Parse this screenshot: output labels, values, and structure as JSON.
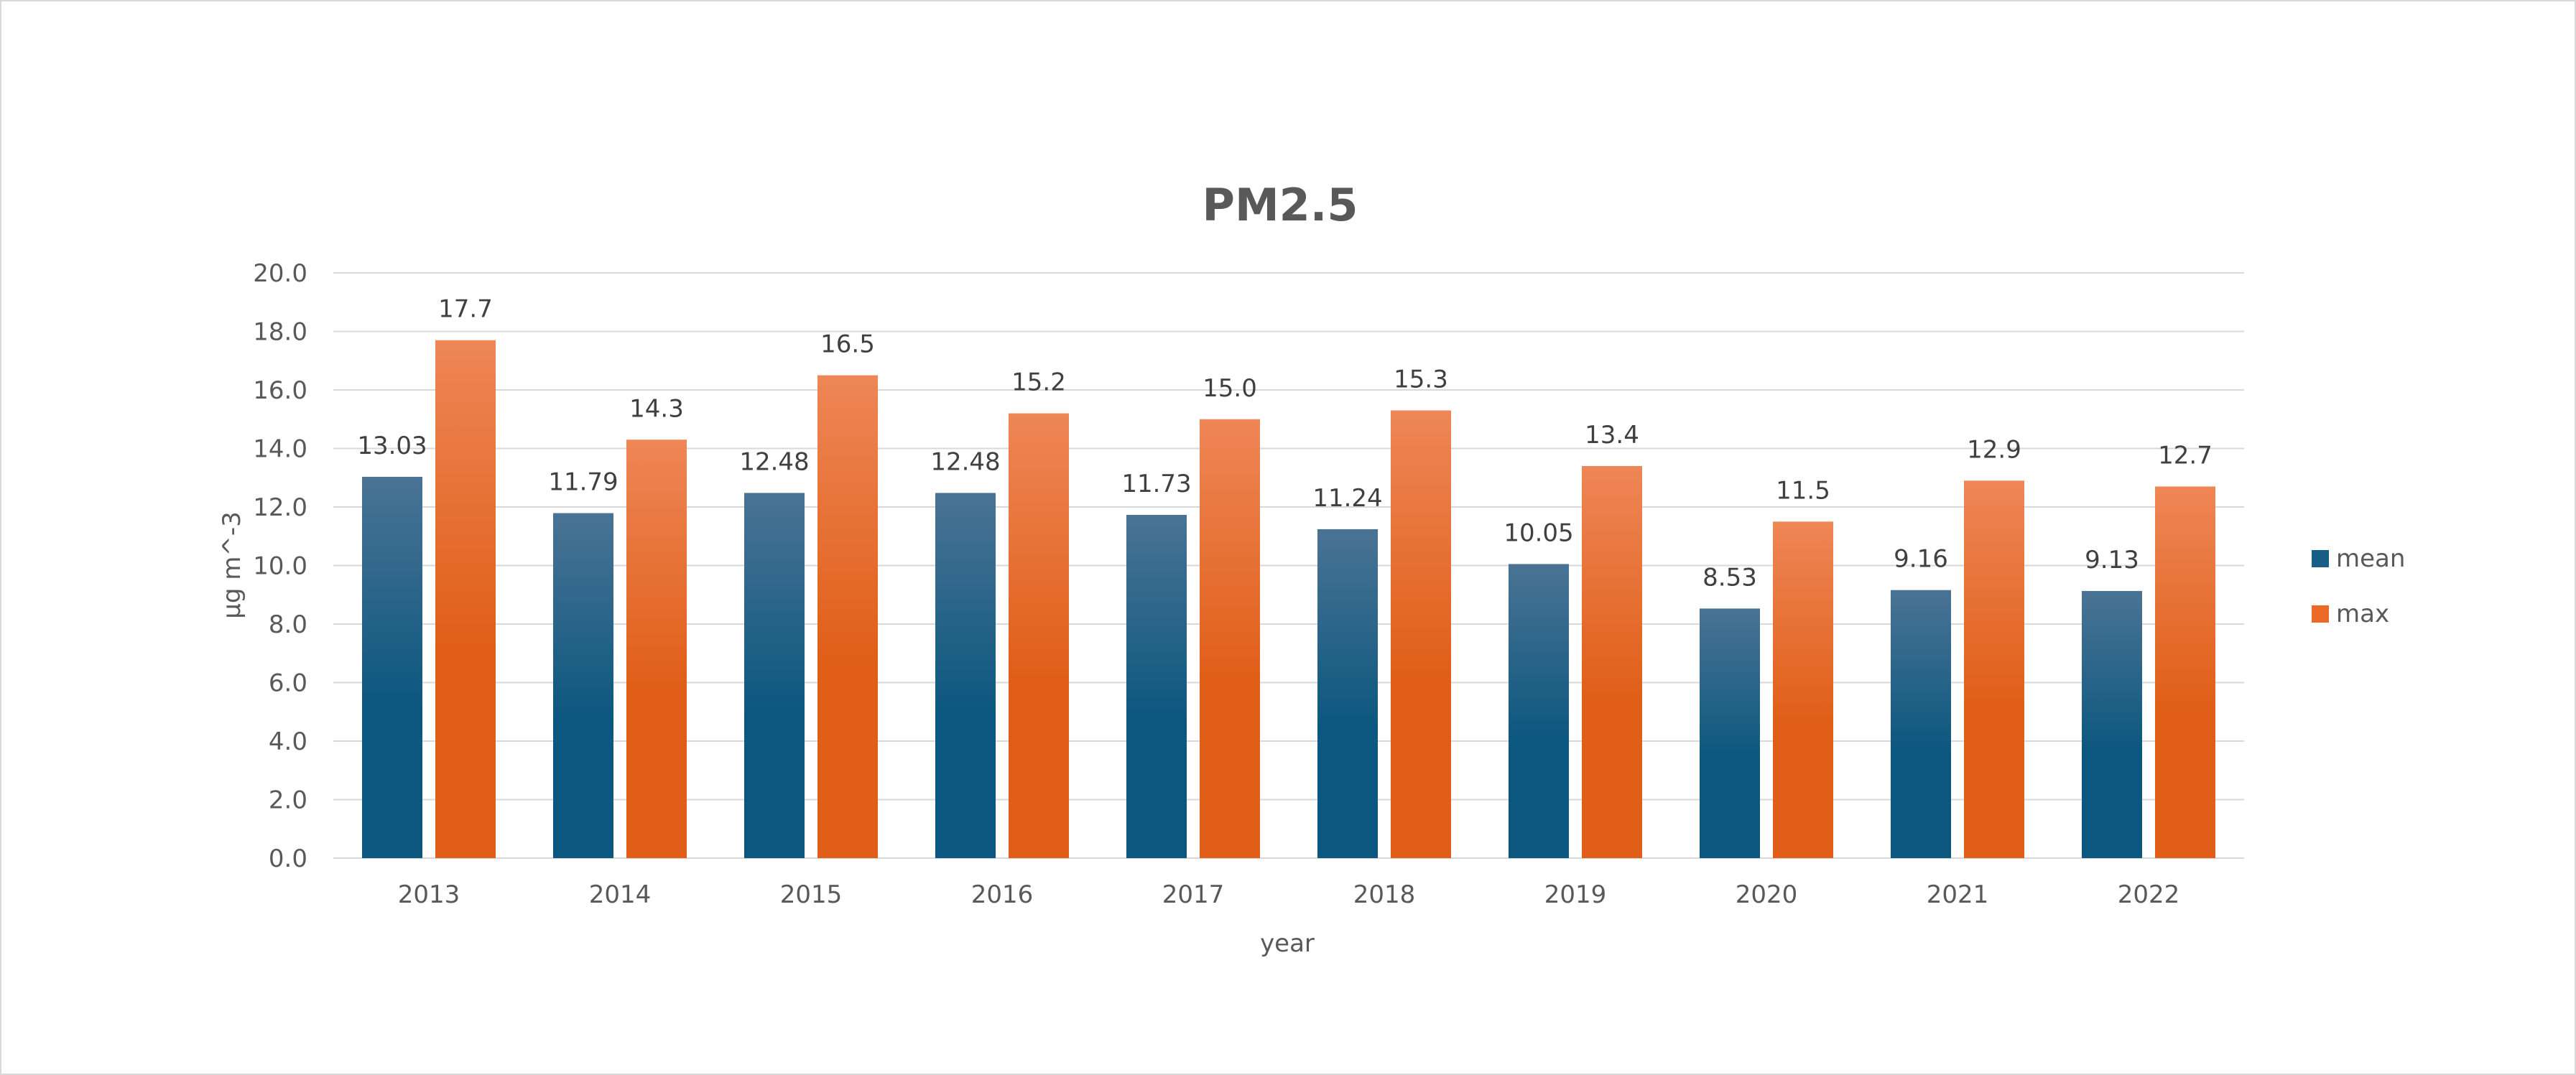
{
  "chart_data": {
    "type": "bar",
    "title": "PM2.5",
    "xlabel": "year",
    "ylabel": "μg m^-3",
    "categories": [
      "2013",
      "2014",
      "2015",
      "2016",
      "2017",
      "2018",
      "2019",
      "2020",
      "2021",
      "2022"
    ],
    "series": [
      {
        "name": "mean",
        "values": [
          13.03,
          11.79,
          12.48,
          12.48,
          11.73,
          11.24,
          10.05,
          8.53,
          9.16,
          9.13
        ],
        "labels": [
          "13.03",
          "11.79",
          "12.48",
          "12.48",
          "11.73",
          "11.24",
          "10.05",
          "8.53",
          "9.16",
          "9.13"
        ],
        "color_top": "#4a7394",
        "color_bottom": "#0c577f"
      },
      {
        "name": "max",
        "values": [
          17.7,
          14.3,
          16.5,
          15.2,
          15.0,
          15.3,
          13.4,
          11.5,
          12.9,
          12.7
        ],
        "labels": [
          "17.7",
          "14.3",
          "16.5",
          "15.2",
          "15.0",
          "15.3",
          "13.4",
          "11.5",
          "12.9",
          "12.7"
        ],
        "color_top": "#ee8656",
        "color_bottom": "#e05e17"
      }
    ],
    "ylim": [
      0,
      20
    ],
    "yticks": [
      "0.0",
      "2.0",
      "4.0",
      "6.0",
      "8.0",
      "10.0",
      "12.0",
      "14.0",
      "16.0",
      "18.0",
      "20.0"
    ],
    "grid": true,
    "legend_position": "right",
    "legend_colors": [
      "#165e86",
      "#ec6a25"
    ]
  }
}
